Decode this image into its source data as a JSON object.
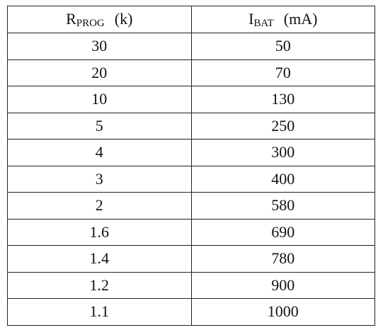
{
  "table": {
    "header": [
      {
        "main": "R",
        "sub": "PROG",
        "unit": "(k)"
      },
      {
        "main": "I",
        "sub": "BAT",
        "unit": "(mA)"
      }
    ],
    "rows": [
      [
        30,
        50
      ],
      [
        20,
        70
      ],
      [
        10,
        130
      ],
      [
        5,
        250
      ],
      [
        4,
        300
      ],
      [
        3,
        400
      ],
      [
        2,
        580
      ],
      [
        1.6,
        690
      ],
      [
        1.4,
        780
      ],
      [
        1.2,
        900
      ],
      [
        1.1,
        1000
      ]
    ]
  }
}
